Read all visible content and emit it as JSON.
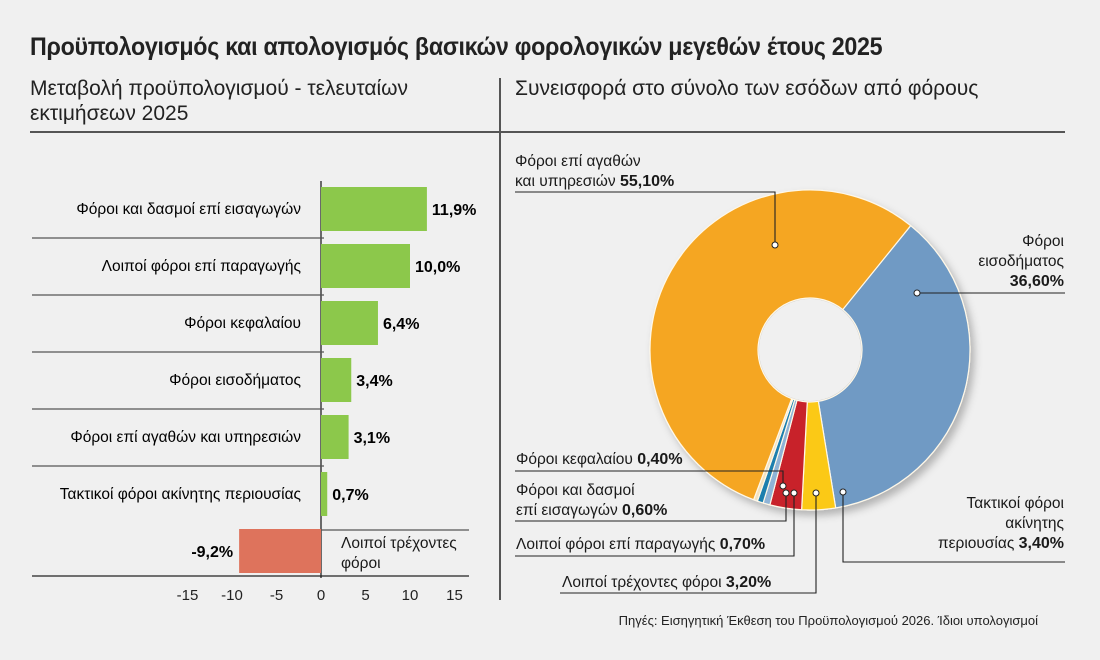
{
  "title": "Προϋπολογισμός και απολογισμός βασικών φορολογικών μεγεθών έτους 2025",
  "source": "Πηγές: Εισηγητική Έκθεση του Προϋπολογισμού 2026. Ίδιοι υπολογισμοί",
  "chart_data": [
    {
      "type": "bar",
      "orientation": "horizontal",
      "title": "Μεταβολή προϋπολογισμού - τελευταίων εκτιμήσεων 2025",
      "categories": [
        "Φόροι και δασμοί επί εισαγωγών",
        "Λοιποί φόροι επί παραγωγής",
        "Φόροι κεφαλαίου",
        "Φόροι εισοδήματος",
        "Φόροι επί αγαθών και υπηρεσιών",
        "Τακτικοί φόροι ακίνητης περιουσίας",
        "Λοιποί τρέχοντες φόροι"
      ],
      "values": [
        11.9,
        10.0,
        6.4,
        3.4,
        3.1,
        0.7,
        -9.2
      ],
      "data_labels": [
        "11,9%",
        "10,0%",
        "6,4%",
        "3,4%",
        "3,1%",
        "0,7%",
        "-9,2%"
      ],
      "xlim": [
        -15,
        15
      ],
      "xticks": [
        "-15",
        "-10",
        "-5",
        "0",
        "5",
        "10",
        "15"
      ],
      "colors": {
        "positive": "#8cc84b",
        "negative": "#de735c"
      },
      "xlabel": "",
      "ylabel": ""
    },
    {
      "type": "pie",
      "variant": "donut",
      "title": "Συνεισφορά στο σύνολο των εσόδων από φόρους",
      "slices": [
        {
          "name": "Φόροι επί αγαθών και υπηρεσιών",
          "label": "Φόροι επί αγαθών και υπηρεσιών",
          "value": 55.1,
          "value_label": "55,10%",
          "color": "#f5a623"
        },
        {
          "name": "Φόροι εισοδήματος",
          "label": "Φόροι εισοδήματος",
          "value": 36.6,
          "value_label": "36,60%",
          "color": "#6f9ac4"
        },
        {
          "name": "Τακτικοί φόροι ακίνητης περιουσίας",
          "label": "Τακτικοί φόροι ακίνητης περιουσίας",
          "value": 3.4,
          "value_label": "3,40%",
          "color": "#fbc918"
        },
        {
          "name": "Λοιποί τρέχοντες φόροι",
          "label": "Λοιποί τρέχοντες φόροι",
          "value": 3.2,
          "value_label": "3,20%",
          "color": "#c8202b"
        },
        {
          "name": "Λοιποί φόροι επί παραγωγής",
          "label": "Λοιποί φόροι επί παραγωγής",
          "value": 0.7,
          "value_label": "0,70%",
          "color": "#8fb3d6"
        },
        {
          "name": "Φόροι και δασμοί επί εισαγωγών",
          "label": "Φόροι και δασμοί επί εισαγωγών",
          "value": 0.6,
          "value_label": "0,60%",
          "color": "#1f7fae"
        },
        {
          "name": "Φόροι κεφαλαίου",
          "label": "Φόροι κεφαλαίου",
          "value": 0.4,
          "value_label": "0,40%",
          "color": "#f3e2bf"
        }
      ]
    }
  ],
  "pie_labels": {
    "goods_line1": "Φόροι επί αγαθών",
    "goods_line2": "και υπηρεσιών",
    "goods_value": "55,10%",
    "income_line1": "Φόροι",
    "income_line2": "εισοδήματος",
    "income_value": "36,60%",
    "capital_text": "Φόροι κεφαλαίου",
    "capital_value": "0,40%",
    "imports_line1": "Φόροι και δασμοί",
    "imports_line2": "επί εισαγωγών",
    "imports_value": "0,60%",
    "production_text": "Λοιποί φόροι επί παραγωγής",
    "production_value": "0,70%",
    "other_current_text": "Λοιποί τρέχοντες φόροι",
    "other_current_value": "3,20%",
    "property_line1": "Τακτικοί φόροι",
    "property_line2": "ακίνητης",
    "property_line3": "περιουσίας",
    "property_value": "3,40%"
  },
  "bar_last_label_line1": "Λοιποί τρέχοντες",
  "bar_last_label_line2": "φόροι"
}
